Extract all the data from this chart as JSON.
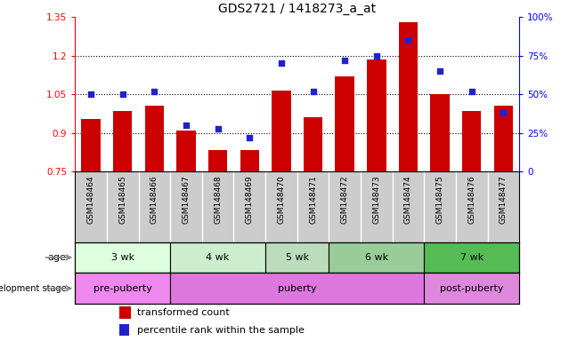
{
  "title": "GDS2721 / 1418273_a_at",
  "samples": [
    "GSM148464",
    "GSM148465",
    "GSM148466",
    "GSM148467",
    "GSM148468",
    "GSM148469",
    "GSM148470",
    "GSM148471",
    "GSM148472",
    "GSM148473",
    "GSM148474",
    "GSM148475",
    "GSM148476",
    "GSM148477"
  ],
  "transformed_count": [
    0.955,
    0.985,
    1.005,
    0.91,
    0.835,
    0.835,
    1.065,
    0.96,
    1.12,
    1.185,
    1.33,
    1.05,
    0.985,
    1.005
  ],
  "percentile_rank": [
    50,
    50,
    52,
    30,
    28,
    22,
    70,
    52,
    72,
    75,
    85,
    65,
    52,
    38
  ],
  "ylim_left": [
    0.75,
    1.35
  ],
  "ylim_right": [
    0,
    100
  ],
  "yticks_left": [
    0.75,
    0.9,
    1.05,
    1.2,
    1.35
  ],
  "yticks_right": [
    0,
    25,
    50,
    75,
    100
  ],
  "ytick_labels_right": [
    "0",
    "25%",
    "50%",
    "75%",
    "100%"
  ],
  "bar_color": "#cc0000",
  "dot_color": "#2222cc",
  "bar_bottom": 0.75,
  "age_groups": [
    {
      "label": "3 wk",
      "start": 0,
      "end": 3,
      "color": "#ddffdd"
    },
    {
      "label": "4 wk",
      "start": 3,
      "end": 6,
      "color": "#cceecc"
    },
    {
      "label": "5 wk",
      "start": 6,
      "end": 8,
      "color": "#bbddbb"
    },
    {
      "label": "6 wk",
      "start": 8,
      "end": 11,
      "color": "#99cc99"
    },
    {
      "label": "7 wk",
      "start": 11,
      "end": 14,
      "color": "#55bb55"
    }
  ],
  "dev_groups": [
    {
      "label": "pre-puberty",
      "start": 0,
      "end": 3,
      "color": "#ee88ee"
    },
    {
      "label": "puberty",
      "start": 3,
      "end": 11,
      "color": "#dd77dd"
    },
    {
      "label": "post-puberty",
      "start": 11,
      "end": 14,
      "color": "#dd88dd"
    }
  ],
  "grid_color": "black",
  "grid_style": "dotted",
  "plot_bg": "white",
  "label_bg": "#cccccc",
  "arrow_color": "#888888"
}
